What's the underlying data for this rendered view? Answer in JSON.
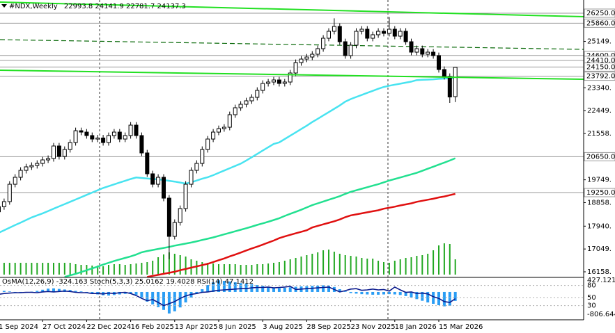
{
  "chart_data": {
    "type": "candlestick",
    "title": "#NDX,Weekly",
    "categories": [
      "1 Sep 2024",
      null,
      null,
      null,
      null,
      null,
      null,
      null,
      "27 Oct 2024",
      null,
      null,
      null,
      null,
      null,
      null,
      null,
      "22 Dec 2024",
      null,
      null,
      null,
      null,
      null,
      null,
      null,
      "16 Feb 2025",
      null,
      null,
      null,
      null,
      null,
      null,
      null,
      "13 Apr 2025",
      null,
      null,
      null,
      null,
      null,
      null,
      null,
      "8 Jun 2025",
      null,
      null,
      null,
      null,
      null,
      null,
      null,
      "3 Aug 2025",
      null,
      null,
      null,
      null,
      null,
      null,
      null,
      "28 Sep 2025",
      null,
      null,
      null,
      null,
      null,
      null,
      null,
      "23 Nov 2025",
      null,
      null,
      null,
      null,
      null,
      null,
      null,
      "18 Jan 2026",
      null,
      null,
      null,
      null,
      null,
      null,
      null,
      "15 Mar 2026",
      null,
      null,
      null
    ],
    "open": [
      18500,
      18700,
      18897,
      19575,
      19847,
      20118,
      20254,
      20308,
      20389,
      20525,
      20579,
      21068,
      20661,
      20932,
      21203,
      21664,
      21610,
      21475,
      21339,
      21380,
      21203,
      21475,
      21610,
      21339,
      21475,
      21882,
      21475,
      20797,
      19983,
      19575,
      19847,
      19033,
      17541,
      18084,
      18626,
      19575,
      20118,
      20389,
      20932,
      21339,
      21610,
      21746,
      21800,
      22289,
      22560,
      22696,
      22831,
      22967,
      23238,
      23509,
      23564,
      23645,
      23509,
      23564,
      23916,
      24323,
      24459,
      24540,
      24649,
      24866,
      25273,
      25544,
      25734,
      25137,
      24595,
      25002,
      25544,
      25626,
      25273,
      25409,
      25544,
      25463,
      25626,
      25354,
      25544,
      25137,
      24730,
      24866,
      24649,
      24730,
      24595,
      24052,
      23781,
      22993.8
    ],
    "high": [
      18820,
      19017,
      19695,
      19967,
      20238,
      20374,
      20428,
      20509,
      20645,
      20699,
      21188,
      21188,
      21052,
      21323,
      21784,
      21784,
      21730,
      21595,
      21500,
      21500,
      21595,
      21730,
      21730,
      21595,
      22002,
      22002,
      21595,
      20917,
      20103,
      19967,
      19967,
      19153,
      18204,
      18746,
      19695,
      20238,
      20509,
      21052,
      21459,
      21730,
      21866,
      21920,
      22409,
      22680,
      22816,
      22951,
      23087,
      23358,
      23629,
      23684,
      23765,
      23765,
      23684,
      24036,
      24443,
      24579,
      24660,
      24769,
      24986,
      25393,
      25664,
      26050,
      25854,
      25257,
      25122,
      25664,
      25746,
      25746,
      25529,
      25664,
      25664,
      26100,
      25746,
      25664,
      25664,
      25257,
      24986,
      24986,
      24850,
      24850,
      24715,
      24172,
      23901,
      24141.9
    ],
    "low": [
      18380,
      18580,
      18777,
      19455,
      19727,
      19998,
      20134,
      20188,
      20269,
      20405,
      20459,
      20541,
      20541,
      20812,
      21083,
      21490,
      21355,
      21219,
      21219,
      21083,
      21083,
      21355,
      21219,
      21219,
      21355,
      21355,
      20677,
      19863,
      19455,
      19455,
      18913,
      16650,
      17421,
      17964,
      18506,
      19455,
      19998,
      20269,
      20812,
      21219,
      21490,
      21626,
      21680,
      22169,
      22440,
      22576,
      22711,
      22847,
      23118,
      23389,
      23444,
      23389,
      23389,
      23444,
      23796,
      24203,
      24339,
      24420,
      24529,
      24746,
      25153,
      25424,
      25017,
      24475,
      24475,
      24882,
      25424,
      25153,
      25153,
      25289,
      25343,
      25343,
      25234,
      25234,
      25017,
      24610,
      24610,
      24529,
      24529,
      24475,
      23932,
      23661,
      22750,
      22781.7
    ],
    "close": [
      18700,
      18897,
      19575,
      19847,
      20118,
      20254,
      20308,
      20389,
      20525,
      20579,
      21068,
      20661,
      20932,
      21203,
      21664,
      21610,
      21475,
      21339,
      21380,
      21203,
      21475,
      21610,
      21339,
      21475,
      21882,
      21475,
      20797,
      19983,
      19575,
      19847,
      19033,
      17541,
      18084,
      18626,
      19575,
      20118,
      20389,
      20932,
      21339,
      21610,
      21746,
      21800,
      22289,
      22560,
      22696,
      22831,
      22967,
      23238,
      23509,
      23564,
      23645,
      23509,
      23564,
      23916,
      24323,
      24459,
      24540,
      24649,
      24866,
      25273,
      25544,
      25734,
      25137,
      24595,
      25002,
      25544,
      25626,
      25273,
      25409,
      25544,
      25463,
      25626,
      25354,
      25544,
      25137,
      24730,
      24866,
      24649,
      24730,
      24595,
      24052,
      23781,
      22980,
      24137.3
    ],
    "volume": [
      34,
      34,
      34,
      34,
      34,
      34,
      34,
      34,
      34,
      34,
      34,
      34,
      34,
      34,
      30,
      28,
      28,
      26,
      26,
      24,
      28,
      30,
      30,
      28,
      30,
      32,
      34,
      36,
      40,
      50,
      58,
      64,
      60,
      56,
      52,
      44,
      40,
      36,
      34,
      32,
      30,
      30,
      30,
      30,
      28,
      28,
      28,
      30,
      30,
      32,
      34,
      36,
      40,
      44,
      48,
      52,
      56,
      60,
      64,
      70,
      72,
      66,
      60,
      56,
      54,
      52,
      48,
      46,
      46,
      40,
      36,
      34,
      40,
      44,
      48,
      50,
      54,
      56,
      60,
      70,
      84,
      90,
      88,
      44
    ],
    "volume_color": "#22a822",
    "moving_averages": [
      {
        "color": "#48e3f0",
        "values": [
          17676,
          17780,
          17880,
          17980,
          18080,
          18180,
          18280,
          18360,
          18440,
          18530,
          18620,
          18710,
          18800,
          18890,
          18980,
          19070,
          19160,
          19250,
          19340,
          19430,
          19500,
          19570,
          19640,
          19710,
          19780,
          19840,
          19820,
          19800,
          19780,
          19770,
          19740,
          19710,
          19680,
          19640,
          19600,
          19650,
          19720,
          19790,
          19850,
          19930,
          20020,
          20110,
          20200,
          20290,
          20380,
          20500,
          20630,
          20760,
          20890,
          21020,
          21150,
          21210,
          21340,
          21470,
          21600,
          21730,
          21860,
          22000,
          22130,
          22260,
          22390,
          22520,
          22650,
          22800,
          22900,
          22980,
          23060,
          23140,
          23220,
          23300,
          23370,
          23420,
          23460,
          23500,
          23540,
          23580,
          23640,
          23650,
          23660,
          23670,
          23690,
          23700,
          23710,
          23727
        ]
      },
      {
        "color": "#22e090",
        "values": [
          null,
          null,
          null,
          null,
          null,
          null,
          null,
          null,
          null,
          null,
          null,
          null,
          15960,
          16020,
          16080,
          16150,
          16220,
          16290,
          16360,
          16440,
          16510,
          16580,
          16640,
          16700,
          16760,
          16830,
          16920,
          16970,
          17010,
          17050,
          17090,
          17130,
          17180,
          17220,
          17260,
          17300,
          17350,
          17400,
          17450,
          17500,
          17560,
          17620,
          17680,
          17740,
          17800,
          17860,
          17920,
          17990,
          18050,
          18110,
          18180,
          18250,
          18340,
          18420,
          18500,
          18580,
          18670,
          18760,
          18830,
          18900,
          18970,
          19040,
          19110,
          19200,
          19280,
          19340,
          19400,
          19460,
          19520,
          19580,
          19650,
          19720,
          19780,
          19840,
          19900,
          19960,
          20020,
          20100,
          20180,
          20260,
          20340,
          20420,
          20500,
          20590
        ]
      },
      {
        "color": "#e01010",
        "values": [
          null,
          null,
          null,
          null,
          null,
          null,
          null,
          null,
          null,
          null,
          null,
          null,
          null,
          null,
          null,
          null,
          null,
          null,
          null,
          null,
          null,
          null,
          null,
          null,
          null,
          null,
          null,
          15960,
          16000,
          16040,
          16080,
          16120,
          16160,
          16220,
          16270,
          16320,
          16370,
          16420,
          16470,
          16540,
          16610,
          16680,
          16760,
          16830,
          16910,
          16990,
          17070,
          17140,
          17220,
          17300,
          17380,
          17470,
          17540,
          17600,
          17660,
          17720,
          17780,
          17890,
          17950,
          18010,
          18070,
          18130,
          18200,
          18290,
          18360,
          18400,
          18440,
          18480,
          18520,
          18560,
          18620,
          18660,
          18700,
          18750,
          18790,
          18830,
          18890,
          18930,
          18970,
          19010,
          19060,
          19100,
          19150,
          19200
        ]
      }
    ],
    "ylim": [
      15941,
      26765
    ],
    "yticks": [
      {
        "value": 25149,
        "label": "25149."
      },
      {
        "value": 23340,
        "label": "23340."
      },
      {
        "value": 22449,
        "label": "22449."
      },
      {
        "value": 21558,
        "label": "21558."
      },
      {
        "value": 19749,
        "label": "19749."
      },
      {
        "value": 18858,
        "label": "18858."
      },
      {
        "value": 17940,
        "label": "17940."
      },
      {
        "value": 17049,
        "label": "17049."
      },
      {
        "value": 16158,
        "label": "16158."
      }
    ],
    "levels": [
      {
        "value": 26250,
        "label": "26250.0"
      },
      {
        "value": 25860,
        "label": "25860.0"
      },
      {
        "value": 24600,
        "label": "24600.0"
      },
      {
        "value": 24410,
        "label": "24410.0"
      },
      {
        "value": 24150,
        "label": "24150.0"
      },
      {
        "value": 23792,
        "label": "23792.0"
      },
      {
        "value": 20650,
        "label": "20650.0"
      },
      {
        "value": 19250,
        "label": "19250.0"
      }
    ],
    "indicators": {
      "osma": {
        "name": "OsMA(12,26,9)",
        "color": "#2a9df4",
        "ylim": [
          -806.644,
          427.121
        ],
        "values": [
          60,
          40,
          20,
          -20,
          -40,
          -30,
          10,
          40,
          80,
          120,
          130,
          110,
          90,
          70,
          40,
          20,
          -20,
          -60,
          -90,
          -120,
          -130,
          -110,
          -90,
          -70,
          -60,
          -100,
          -200,
          -350,
          -450,
          -550,
          -650,
          -780,
          -700,
          -560,
          -380,
          -200,
          -50,
          100,
          250,
          350,
          420,
          400,
          380,
          350,
          320,
          300,
          280,
          250,
          220,
          190,
          160,
          140,
          150,
          170,
          190,
          200,
          210,
          220,
          230,
          240,
          230,
          180,
          100,
          20,
          -40,
          -60,
          -80,
          -90,
          -100,
          -100,
          -90,
          -80,
          -90,
          -110,
          -150,
          -200,
          -260,
          -320,
          -380,
          -430,
          -480,
          -520,
          -500,
          -324.163
        ]
      },
      "stoch": {
        "name": "Stoch(5,3,3)",
        "main": 25.0162,
        "signal": 19.4028
      },
      "rsi": {
        "name": "RSI(14)",
        "color": "#0a1a8c",
        "ylim": [
          0,
          100
        ],
        "yticks": [
          80,
          50,
          30
        ],
        "values": [
          58,
          60,
          61,
          62,
          62,
          63,
          63,
          62,
          64,
          65,
          64,
          65,
          66,
          65,
          63,
          62,
          62,
          60,
          60,
          59,
          61,
          60,
          62,
          63,
          60,
          55,
          48,
          42,
          45,
          38,
          30,
          35,
          40,
          48,
          54,
          58,
          60,
          63,
          64,
          66,
          68,
          69,
          70,
          71,
          72,
          72,
          74,
          75,
          75,
          76,
          74,
          75,
          76,
          78,
          70,
          71,
          72,
          73,
          74,
          75,
          76,
          70,
          64,
          67,
          71,
          72,
          68,
          69,
          71,
          69,
          70,
          66,
          76,
          69,
          63,
          64,
          60,
          61,
          59,
          52,
          48,
          40,
          38,
          47.1412
        ]
      }
    }
  }
}
